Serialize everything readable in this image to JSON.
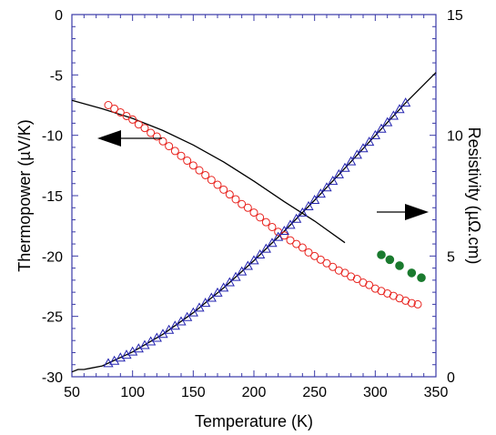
{
  "chart_data": {
    "type": "scatter",
    "xlabel": "Temperature (K)",
    "ylabel_left": "Thermopower (µV/K)",
    "ylabel_right": "Resistivity (µΩ.cm)",
    "xlim": [
      50,
      350
    ],
    "ylim_left": [
      -30,
      0
    ],
    "ylim_right": [
      0,
      15
    ],
    "x_ticks": [
      "50",
      "100",
      "150",
      "200",
      "250",
      "300",
      "350"
    ],
    "y_left_ticks": [
      "0",
      "-5",
      "-10",
      "-15",
      "-20",
      "-25",
      "-30"
    ],
    "y_right_ticks": [
      "15",
      "10",
      "5",
      "0"
    ],
    "grid": false,
    "colors": {
      "thermopower_open": "#e8231e",
      "thermopower_filled": "#1a7a2e",
      "resistivity": "#2323b0",
      "frame": "#3a3aa8",
      "fit": "#000000"
    },
    "series": [
      {
        "axis": "left",
        "marker": "open-circle",
        "color": "#e8231e",
        "x": [
          80,
          85,
          90,
          95,
          100,
          105,
          110,
          115,
          120,
          125,
          130,
          135,
          140,
          145,
          150,
          155,
          160,
          165,
          170,
          175,
          180,
          185,
          190,
          195,
          200,
          205,
          210,
          215,
          220,
          225,
          230,
          235,
          240,
          245,
          250,
          255,
          260,
          265,
          270,
          275,
          280,
          285,
          290,
          295,
          300,
          305,
          310,
          315,
          320,
          325,
          330,
          335
        ],
        "values": [
          -7.5,
          -7.8,
          -8.1,
          -8.4,
          -8.7,
          -9.1,
          -9.4,
          -9.8,
          -10.1,
          -10.5,
          -10.9,
          -11.3,
          -11.7,
          -12.1,
          -12.5,
          -12.9,
          -13.3,
          -13.7,
          -14.1,
          -14.5,
          -14.9,
          -15.3,
          -15.7,
          -16.0,
          -16.4,
          -16.8,
          -17.2,
          -17.6,
          -18.0,
          -18.3,
          -18.7,
          -19.0,
          -19.3,
          -19.7,
          -20.0,
          -20.3,
          -20.6,
          -20.9,
          -21.2,
          -21.4,
          -21.7,
          -21.9,
          -22.2,
          -22.4,
          -22.7,
          -22.9,
          -23.1,
          -23.3,
          -23.5,
          -23.7,
          -23.9,
          -24.0
        ]
      },
      {
        "axis": "left",
        "marker": "filled-circle",
        "color": "#1a7a2e",
        "x": [
          305,
          312,
          320,
          330,
          338
        ],
        "values": [
          -19.9,
          -20.3,
          -20.8,
          -21.4,
          -21.8
        ]
      },
      {
        "axis": "right",
        "marker": "open-triangle",
        "color": "#2323b0",
        "x": [
          80,
          85,
          90,
          95,
          100,
          105,
          110,
          115,
          120,
          125,
          130,
          135,
          140,
          145,
          150,
          155,
          160,
          165,
          170,
          175,
          180,
          185,
          190,
          195,
          200,
          205,
          210,
          215,
          220,
          225,
          230,
          235,
          240,
          245,
          250,
          255,
          260,
          265,
          270,
          275,
          280,
          285,
          290,
          295,
          300,
          305,
          310,
          315,
          320,
          325
        ],
        "values": [
          0.55,
          0.65,
          0.78,
          0.9,
          1.03,
          1.16,
          1.3,
          1.45,
          1.6,
          1.76,
          1.93,
          2.1,
          2.28,
          2.46,
          2.65,
          2.85,
          3.05,
          3.26,
          3.47,
          3.68,
          3.9,
          4.12,
          4.35,
          4.58,
          4.81,
          5.05,
          5.29,
          5.53,
          5.78,
          6.03,
          6.28,
          6.53,
          6.79,
          7.05,
          7.31,
          7.57,
          7.83,
          8.1,
          8.37,
          8.64,
          8.91,
          9.18,
          9.45,
          9.72,
          9.99,
          10.26,
          10.53,
          10.8,
          11.07,
          11.34
        ]
      }
    ],
    "fits": [
      {
        "axis": "left",
        "x": [
          50,
          75,
          100,
          125,
          150,
          175,
          200,
          225,
          250,
          275
        ],
        "values": [
          -7.1,
          -7.8,
          -8.6,
          -9.6,
          -10.8,
          -12.2,
          -13.8,
          -15.5,
          -17.1,
          -18.9
        ]
      },
      {
        "axis": "right",
        "x": [
          50,
          55,
          60,
          65,
          75,
          100,
          125,
          150,
          175,
          200,
          225,
          250,
          275,
          300,
          325,
          350
        ],
        "values": [
          0.2,
          0.3,
          0.3,
          0.35,
          0.45,
          1.03,
          1.76,
          2.65,
          3.68,
          4.81,
          6.03,
          7.31,
          8.64,
          9.99,
          11.34,
          12.6
        ]
      }
    ],
    "annotations": [
      {
        "type": "arrow",
        "direction": "left",
        "points_to_axis": "left"
      },
      {
        "type": "arrow",
        "direction": "right",
        "points_to_axis": "right"
      }
    ]
  }
}
